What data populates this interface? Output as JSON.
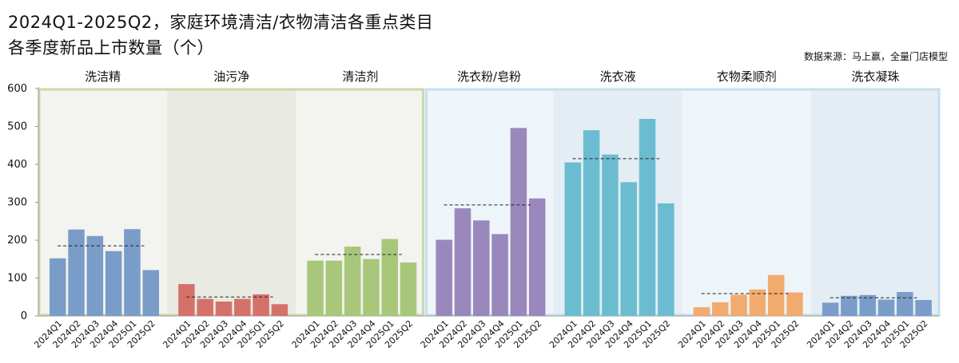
{
  "title_line1": "2024Q1-2025Q2，家庭环境清洁/衣物清洁各重点类目",
  "title_line2": "各季度新品上市数量（个）",
  "source": "数据来源：马上赢，全量门店模型",
  "chart_data": {
    "type": "bar",
    "ylim": [
      0,
      600
    ],
    "yticks": [
      0,
      100,
      200,
      300,
      400,
      500,
      600
    ],
    "grid": false,
    "quarters": [
      "2024Q1",
      "2024Q2",
      "2024Q3",
      "2024Q4",
      "2025Q1",
      "2025Q2"
    ],
    "panels": [
      {
        "name": "洗洁精",
        "group": "家庭环境清洁",
        "color": "#7a9cc8",
        "values": [
          152,
          228,
          211,
          171,
          229,
          121
        ],
        "avg": 185
      },
      {
        "name": "油污净",
        "group": "家庭环境清洁",
        "color": "#d4726a",
        "values": [
          84,
          45,
          38,
          45,
          57,
          31
        ],
        "avg": 50
      },
      {
        "name": "清洁剂",
        "group": "家庭环境清洁",
        "color": "#a8c77a",
        "values": [
          146,
          146,
          183,
          150,
          203,
          141
        ],
        "avg": 162
      },
      {
        "name": "洗衣粉/皂粉",
        "group": "衣物清洁",
        "color": "#9a88bc",
        "values": [
          201,
          284,
          252,
          216,
          496,
          310
        ],
        "avg": 293
      },
      {
        "name": "洗衣液",
        "group": "衣物清洁",
        "color": "#6bbcd0",
        "values": [
          405,
          490,
          426,
          353,
          520,
          297
        ],
        "avg": 415
      },
      {
        "name": "衣物柔顺剂",
        "group": "衣物清洁",
        "color": "#f2ab6e",
        "values": [
          23,
          36,
          56,
          70,
          108,
          62
        ],
        "avg": 59
      },
      {
        "name": "洗衣凝珠",
        "group": "衣物清洁",
        "color": "#7a9cc8",
        "values": [
          35,
          53,
          55,
          43,
          63,
          42
        ],
        "avg": 48
      }
    ]
  },
  "colors": {
    "group1_border": "#c9dba8",
    "group2_border": "#c6dfef",
    "panel_bg_light_1": "#f3f3ef",
    "panel_bg_dark_1": "#e9ebe3",
    "panel_bg_light_2": "#eef5f9",
    "panel_bg_dark_2": "#e3edf3",
    "avg_line": "#222222"
  }
}
